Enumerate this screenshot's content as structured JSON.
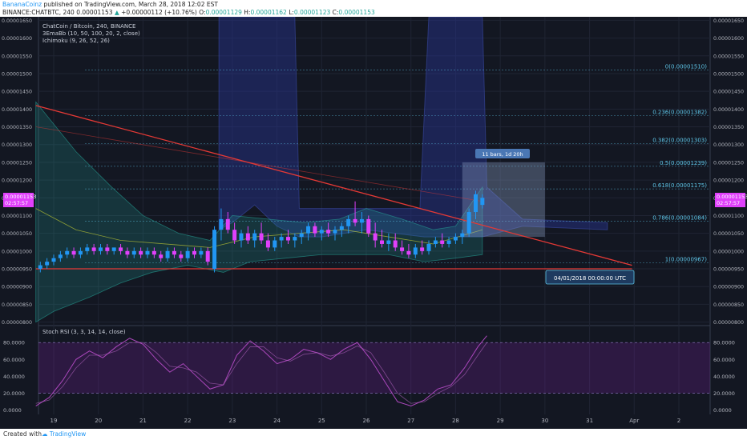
{
  "header": {
    "author": "BananaCoinz",
    "published_text": "published on TradingView.com, March 28, 2018 12:02 EST",
    "symbol_line": "BINANCE:CHATBTC, 240",
    "last_price": "0.00001153",
    "change_text": "+0.00000112 (+10.76%)",
    "ohlc": {
      "open_label": "O:",
      "open": "0.00001129",
      "high_label": "H:",
      "high": "0.00001162",
      "low_label": "L:",
      "low": "0.00001123",
      "close_label": "C:",
      "close": "0.00001153"
    }
  },
  "legend": {
    "title": "ChatCoin / Bitcoin, 240, BINANCE",
    "indicator_1": "3EmaBb (10, 50, 100, 20, 2, close)",
    "indicator_2": "Ichimoku (9, 26, 52, 26)",
    "rsi_title": "Stoch RSI (3, 3, 14, 14, close)"
  },
  "price_tag": {
    "price": "0.00001153",
    "countdown": "02:57:57"
  },
  "annotations": {
    "measure_label": "11 bars, 1d 20h",
    "date_label": "04/01/2018 00:00:00 UTC"
  },
  "footer": {
    "created_with": "Created with",
    "brand": "TradingView"
  },
  "colors": {
    "background": "#131722",
    "bull": "#2196f3",
    "bear": "#e040fb",
    "trendline": "#e53935",
    "fib": "#5ec6e8",
    "cloud": "#283593",
    "band": "#26a69a",
    "stoch_k": "#ab47bc",
    "stoch_band": "#7b1fa2"
  },
  "chart_data": [
    {
      "type": "candlestick",
      "title": "ChatCoin / Bitcoin, 240, BINANCE",
      "x_ticks": [
        "19",
        "20",
        "21",
        "22",
        "23",
        "24",
        "25",
        "26",
        "27",
        "28",
        "29",
        "30",
        "31",
        "Apr",
        "2"
      ],
      "y_ticks": [
        "0.00000800",
        "0.00000850",
        "0.00000900",
        "0.00000950",
        "0.00001000",
        "0.00001050",
        "0.00001100",
        "0.00001150",
        "0.00001200",
        "0.00001250",
        "0.00001300",
        "0.00001350",
        "0.00001400",
        "0.00001450",
        "0.00001500",
        "0.00001550",
        "0.00001600",
        "0.00001650"
      ],
      "ylim": [
        7.9e-06,
        1.66e-05
      ],
      "fib_levels": [
        {
          "label": "0(0.00001510)",
          "value": 1.51e-05
        },
        {
          "label": "0.236(0.00001382)",
          "value": 1.382e-05
        },
        {
          "label": "0.382(0.00001303)",
          "value": 1.303e-05
        },
        {
          "label": "0.5(0.00001239)",
          "value": 1.239e-05
        },
        {
          "label": "0.618(0.00001175)",
          "value": 1.175e-05
        },
        {
          "label": "0.786(0.00001084)",
          "value": 1.084e-05
        },
        {
          "label": "1(0.00000967)",
          "value": 9.67e-06
        }
      ],
      "candles": [
        {
          "t": 18.7,
          "o": 9.5e-06,
          "h": 9.7e-06,
          "l": 9.4e-06,
          "c": 9.6e-06
        },
        {
          "t": 18.85,
          "o": 9.6e-06,
          "h": 9.8e-06,
          "l": 9.5e-06,
          "c": 9.7e-06
        },
        {
          "t": 19.0,
          "o": 9.7e-06,
          "h": 9.9e-06,
          "l": 9.6e-06,
          "c": 9.8e-06
        },
        {
          "t": 19.15,
          "o": 9.8e-06,
          "h": 1e-05,
          "l": 9.7e-06,
          "c": 9.9e-06
        },
        {
          "t": 19.3,
          "o": 9.9e-06,
          "h": 1.01e-05,
          "l": 9.8e-06,
          "c": 1e-05
        },
        {
          "t": 19.45,
          "o": 1e-05,
          "h": 1.01e-05,
          "l": 9.8e-06,
          "c": 9.9e-06
        },
        {
          "t": 19.6,
          "o": 9.9e-06,
          "h": 1.01e-05,
          "l": 9.8e-06,
          "c": 1e-05
        },
        {
          "t": 19.75,
          "o": 1e-05,
          "h": 1.02e-05,
          "l": 9.9e-06,
          "c": 1.01e-05
        },
        {
          "t": 19.9,
          "o": 1.01e-05,
          "h": 1.02e-05,
          "l": 9.9e-06,
          "c": 1e-05
        },
        {
          "t": 20.05,
          "o": 1e-05,
          "h": 1.02e-05,
          "l": 9.9e-06,
          "c": 1.01e-05
        },
        {
          "t": 20.2,
          "o": 1.01e-05,
          "h": 1.02e-05,
          "l": 9.9e-06,
          "c": 1e-05
        },
        {
          "t": 20.35,
          "o": 1e-05,
          "h": 1.01e-05,
          "l": 9.9e-06,
          "c": 1.01e-05
        },
        {
          "t": 20.5,
          "o": 1.01e-05,
          "h": 1.02e-05,
          "l": 9.9e-06,
          "c": 1e-05
        },
        {
          "t": 20.65,
          "o": 1e-05,
          "h": 1.01e-05,
          "l": 9.8e-06,
          "c": 9.9e-06
        },
        {
          "t": 20.8,
          "o": 9.9e-06,
          "h": 1.01e-05,
          "l": 9.8e-06,
          "c": 1e-05
        },
        {
          "t": 20.95,
          "o": 1e-05,
          "h": 1.01e-05,
          "l": 9.8e-06,
          "c": 9.9e-06
        },
        {
          "t": 21.1,
          "o": 9.9e-06,
          "h": 1.01e-05,
          "l": 9.8e-06,
          "c": 1e-05
        },
        {
          "t": 21.25,
          "o": 1e-05,
          "h": 1.01e-05,
          "l": 9.8e-06,
          "c": 9.9e-06
        },
        {
          "t": 21.4,
          "o": 9.9e-06,
          "h": 1e-05,
          "l": 9.7e-06,
          "c": 9.8e-06
        },
        {
          "t": 21.55,
          "o": 9.8e-06,
          "h": 1.01e-05,
          "l": 9.7e-06,
          "c": 1e-05
        },
        {
          "t": 21.7,
          "o": 1e-05,
          "h": 1.01e-05,
          "l": 9.8e-06,
          "c": 9.9e-06
        },
        {
          "t": 21.85,
          "o": 9.9e-06,
          "h": 1e-05,
          "l": 9.7e-06,
          "c": 9.8e-06
        },
        {
          "t": 22.0,
          "o": 9.8e-06,
          "h": 1.01e-05,
          "l": 9.7e-06,
          "c": 1e-05
        },
        {
          "t": 22.15,
          "o": 1e-05,
          "h": 1.01e-05,
          "l": 9.8e-06,
          "c": 9.9e-06
        },
        {
          "t": 22.3,
          "o": 9.9e-06,
          "h": 1.01e-05,
          "l": 9.8e-06,
          "c": 1e-05
        },
        {
          "t": 22.45,
          "o": 1e-05,
          "h": 1.01e-05,
          "l": 9.6e-06,
          "c": 9.7e-06
        },
        {
          "t": 22.6,
          "o": 9.5e-06,
          "h": 1.07e-05,
          "l": 9.4e-06,
          "c": 1.06e-05
        },
        {
          "t": 22.75,
          "o": 1.06e-05,
          "h": 1.12e-05,
          "l": 1.03e-05,
          "c": 1.09e-05
        },
        {
          "t": 22.9,
          "o": 1.09e-05,
          "h": 1.11e-05,
          "l": 1.05e-05,
          "c": 1.06e-05
        },
        {
          "t": 23.05,
          "o": 1.06e-05,
          "h": 1.08e-05,
          "l": 1.02e-05,
          "c": 1.03e-05
        },
        {
          "t": 23.2,
          "o": 1.03e-05,
          "h": 1.06e-05,
          "l": 1.01e-05,
          "c": 1.05e-05
        },
        {
          "t": 23.35,
          "o": 1.05e-05,
          "h": 1.07e-05,
          "l": 1.02e-05,
          "c": 1.03e-05
        },
        {
          "t": 23.5,
          "o": 1.03e-05,
          "h": 1.06e-05,
          "l": 1.01e-05,
          "c": 1.05e-05
        },
        {
          "t": 23.65,
          "o": 1.05e-05,
          "h": 1.08e-05,
          "l": 1.02e-05,
          "c": 1.03e-05
        },
        {
          "t": 23.8,
          "o": 1.03e-05,
          "h": 1.05e-05,
          "l": 1e-05,
          "c": 1.01e-05
        },
        {
          "t": 23.95,
          "o": 1.01e-05,
          "h": 1.04e-05,
          "l": 1e-05,
          "c": 1.03e-05
        },
        {
          "t": 24.1,
          "o": 1.03e-05,
          "h": 1.05e-05,
          "l": 1.01e-05,
          "c": 1.04e-05
        },
        {
          "t": 24.25,
          "o": 1.04e-05,
          "h": 1.06e-05,
          "l": 1.02e-05,
          "c": 1.03e-05
        },
        {
          "t": 24.4,
          "o": 1.03e-05,
          "h": 1.05e-05,
          "l": 1.01e-05,
          "c": 1.04e-05
        },
        {
          "t": 24.55,
          "o": 1.04e-05,
          "h": 1.06e-05,
          "l": 1.02e-05,
          "c": 1.05e-05
        },
        {
          "t": 24.7,
          "o": 1.05e-05,
          "h": 1.08e-05,
          "l": 1.03e-05,
          "c": 1.07e-05
        },
        {
          "t": 24.85,
          "o": 1.07e-05,
          "h": 1.08e-05,
          "l": 1.04e-05,
          "c": 1.05e-05
        },
        {
          "t": 25.0,
          "o": 1.05e-05,
          "h": 1.07e-05,
          "l": 1.03e-05,
          "c": 1.06e-05
        },
        {
          "t": 25.15,
          "o": 1.06e-05,
          "h": 1.08e-05,
          "l": 1.04e-05,
          "c": 1.05e-05
        },
        {
          "t": 25.3,
          "o": 1.05e-05,
          "h": 1.07e-05,
          "l": 1.03e-05,
          "c": 1.06e-05
        },
        {
          "t": 25.45,
          "o": 1.06e-05,
          "h": 1.08e-05,
          "l": 1.04e-05,
          "c": 1.07e-05
        },
        {
          "t": 25.6,
          "o": 1.07e-05,
          "h": 1.1e-05,
          "l": 1.05e-05,
          "c": 1.09e-05
        },
        {
          "t": 25.75,
          "o": 1.09e-05,
          "h": 1.14e-05,
          "l": 1.07e-05,
          "c": 1.08e-05
        },
        {
          "t": 25.9,
          "o": 1.08e-05,
          "h": 1.11e-05,
          "l": 1.05e-05,
          "c": 1.09e-05
        },
        {
          "t": 26.05,
          "o": 1.09e-05,
          "h": 1.1e-05,
          "l": 1.04e-05,
          "c": 1.05e-05
        },
        {
          "t": 26.2,
          "o": 1.05e-05,
          "h": 1.08e-05,
          "l": 1.01e-05,
          "c": 1.03e-05
        },
        {
          "t": 26.35,
          "o": 1.03e-05,
          "h": 1.06e-05,
          "l": 1.01e-05,
          "c": 1.02e-05
        },
        {
          "t": 26.5,
          "o": 1.02e-05,
          "h": 1.05e-05,
          "l": 1e-05,
          "c": 1.03e-05
        },
        {
          "t": 26.65,
          "o": 1.03e-05,
          "h": 1.05e-05,
          "l": 1e-05,
          "c": 1.01e-05
        },
        {
          "t": 26.8,
          "o": 1.01e-05,
          "h": 1.03e-05,
          "l": 9.9e-06,
          "c": 1e-05
        },
        {
          "t": 26.95,
          "o": 1e-05,
          "h": 1.02e-05,
          "l": 9.8e-06,
          "c": 9.9e-06
        },
        {
          "t": 27.1,
          "o": 9.9e-06,
          "h": 1.02e-05,
          "l": 9.8e-06,
          "c": 1.01e-05
        },
        {
          "t": 27.25,
          "o": 1.01e-05,
          "h": 1.03e-05,
          "l": 9.9e-06,
          "c": 1e-05
        },
        {
          "t": 27.4,
          "o": 1e-05,
          "h": 1.03e-05,
          "l": 9.9e-06,
          "c": 1.02e-05
        },
        {
          "t": 27.55,
          "o": 1.02e-05,
          "h": 1.04e-05,
          "l": 1.01e-05,
          "c": 1.03e-05
        },
        {
          "t": 27.7,
          "o": 1.03e-05,
          "h": 1.05e-05,
          "l": 1.01e-05,
          "c": 1.02e-05
        },
        {
          "t": 27.85,
          "o": 1.02e-05,
          "h": 1.04e-05,
          "l": 1.01e-05,
          "c": 1.03e-05
        },
        {
          "t": 28.0,
          "o": 1.03e-05,
          "h": 1.05e-05,
          "l": 1.02e-05,
          "c": 1.04e-05
        },
        {
          "t": 28.15,
          "o": 1.04e-05,
          "h": 1.06e-05,
          "l": 1.02e-05,
          "c": 1.05e-05
        },
        {
          "t": 28.3,
          "o": 1.05e-05,
          "h": 1.12e-05,
          "l": 1.04e-05,
          "c": 1.11e-05
        },
        {
          "t": 28.45,
          "o": 1.11e-05,
          "h": 1.17e-05,
          "l": 1.09e-05,
          "c": 1.16e-05
        },
        {
          "t": 28.6,
          "o": 1.13e-05,
          "h": 1.16e-05,
          "l": 1.12e-05,
          "c": 1.15e-05
        }
      ]
    },
    {
      "type": "line",
      "title": "Stoch RSI (3, 3, 14, 14, close)",
      "y_ticks": [
        "0.0000",
        "20.0000",
        "40.0000",
        "60.0000",
        "80.0000"
      ],
      "ylim": [
        -5,
        100
      ],
      "bands": [
        20,
        80
      ],
      "x": [
        18.6,
        18.9,
        19.2,
        19.5,
        19.8,
        20.1,
        20.4,
        20.7,
        21.0,
        21.3,
        21.6,
        21.9,
        22.2,
        22.5,
        22.8,
        23.1,
        23.4,
        23.7,
        24.0,
        24.3,
        24.6,
        24.9,
        25.2,
        25.5,
        25.8,
        26.1,
        26.4,
        26.7,
        27.0,
        27.3,
        27.6,
        27.9,
        28.2,
        28.5,
        28.7
      ],
      "series": [
        {
          "values": [
            5,
            15,
            35,
            60,
            70,
            62,
            75,
            85,
            78,
            60,
            45,
            55,
            40,
            25,
            30,
            65,
            82,
            70,
            55,
            60,
            72,
            68,
            60,
            72,
            80,
            60,
            35,
            10,
            5,
            12,
            25,
            30,
            50,
            75,
            88
          ]
        },
        {
          "values": [
            8,
            12,
            28,
            50,
            65,
            65,
            70,
            80,
            80,
            68,
            52,
            50,
            45,
            32,
            30,
            55,
            75,
            75,
            62,
            58,
            66,
            68,
            64,
            68,
            76,
            68,
            45,
            20,
            8,
            10,
            20,
            28,
            42,
            65,
            80
          ]
        }
      ]
    }
  ]
}
